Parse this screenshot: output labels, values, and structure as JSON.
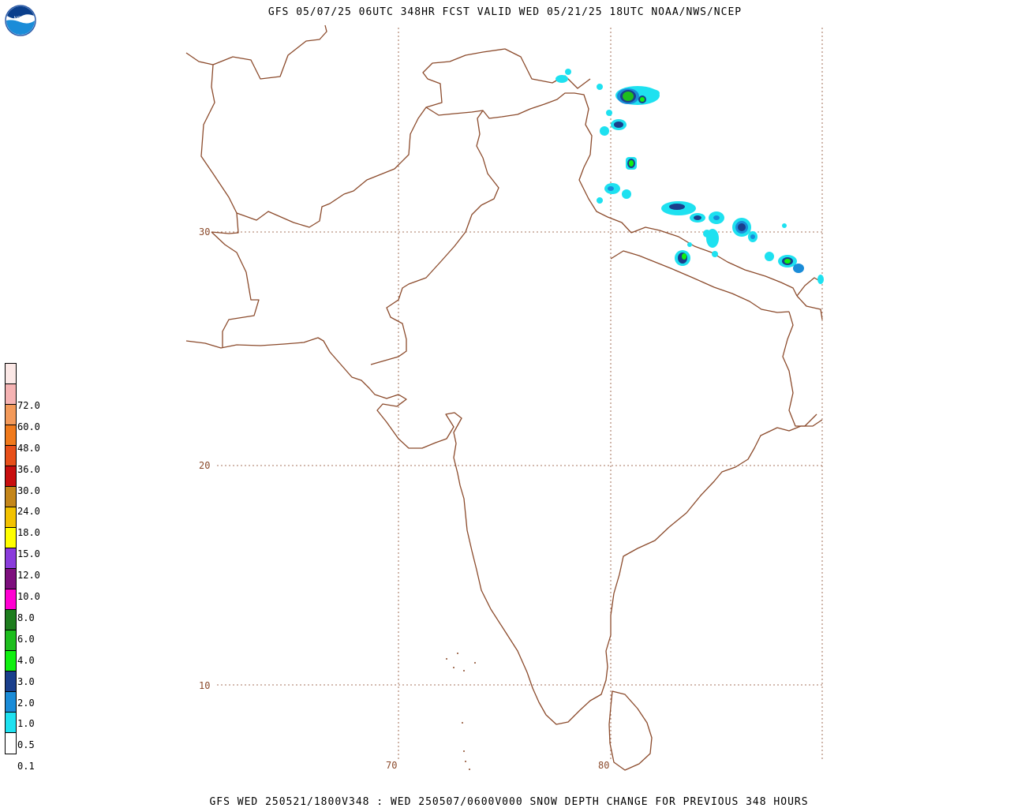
{
  "header": {
    "title": "GFS 05/07/25 06UTC 348HR FCST VALID WED 05/21/25 18UTC NOAA/NWS/NCEP"
  },
  "footer": {
    "text": "GFS WED 250521/1800V348 : WED 250507/0600V000 SNOW DEPTH CHANGE FOR PREVIOUS 348 HOURS"
  },
  "logo": {
    "text": "NOAA",
    "icon": "noaa-logo"
  },
  "legend": {
    "levels": [
      {
        "label": "",
        "color": "#fbe8e6"
      },
      {
        "label": "72.0",
        "color": "#f5b3b3"
      },
      {
        "label": "60.0",
        "color": "#f39a5a"
      },
      {
        "label": "48.0",
        "color": "#f07a1c"
      },
      {
        "label": "36.0",
        "color": "#e8501a"
      },
      {
        "label": "30.0",
        "color": "#c80f0f"
      },
      {
        "label": "24.0",
        "color": "#c4861a"
      },
      {
        "label": "18.0",
        "color": "#f2c200"
      },
      {
        "label": "15.0",
        "color": "#ffff00"
      },
      {
        "label": "12.0",
        "color": "#8a3cdc"
      },
      {
        "label": "10.0",
        "color": "#7d0f7d"
      },
      {
        "label": "8.0",
        "color": "#ff00d2"
      },
      {
        "label": "6.0",
        "color": "#1e7d1e"
      },
      {
        "label": "4.0",
        "color": "#1ebe1e"
      },
      {
        "label": "3.0",
        "color": "#10f010"
      },
      {
        "label": "2.0",
        "color": "#1a3f8c"
      },
      {
        "label": "1.0",
        "color": "#1a8cd8"
      },
      {
        "label": "0.5",
        "color": "#1ee1f0"
      },
      {
        "label": "0.1",
        "color": "#ffffff"
      }
    ]
  },
  "grid": {
    "lat_labels": [
      "30",
      "20",
      "10"
    ],
    "lon_labels": [
      "70",
      "80"
    ]
  },
  "colors": {
    "coast": "#8b4a2b",
    "grid": "#8b4a2b"
  }
}
